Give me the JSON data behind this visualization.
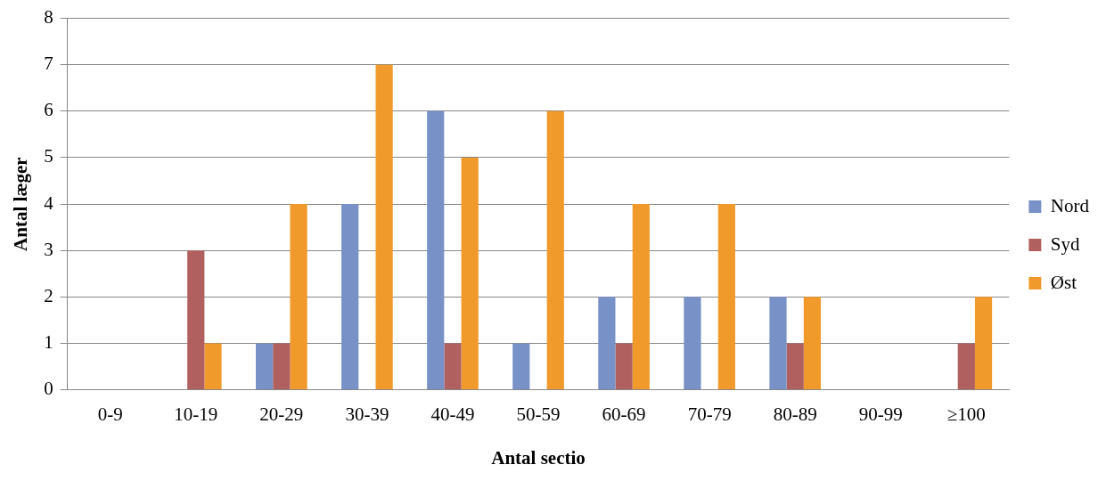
{
  "chart_data": {
    "type": "bar",
    "xlabel": "Antal sectio",
    "ylabel": "Antal læger",
    "categories": [
      "0-9",
      "10-19",
      "20-29",
      "30-39",
      "40-49",
      "50-59",
      "60-69",
      "70-79",
      "80-89",
      "90-99",
      "≥100"
    ],
    "series": [
      {
        "name": "Nord",
        "color": "#7891c6",
        "values": [
          0,
          0,
          1,
          4,
          6,
          1,
          2,
          2,
          2,
          0,
          0
        ]
      },
      {
        "name": "Syd",
        "color": "#b0605e",
        "values": [
          0,
          3,
          1,
          0,
          1,
          0,
          1,
          0,
          1,
          0,
          1
        ]
      },
      {
        "name": "Øst",
        "color": "#f09a2c",
        "values": [
          0,
          1,
          4,
          7,
          5,
          6,
          4,
          4,
          2,
          0,
          2
        ]
      }
    ],
    "ylim": [
      0,
      8
    ],
    "yticks": [
      0,
      1,
      2,
      3,
      4,
      5,
      6,
      7,
      8
    ],
    "grid": "y",
    "legend": "right"
  }
}
